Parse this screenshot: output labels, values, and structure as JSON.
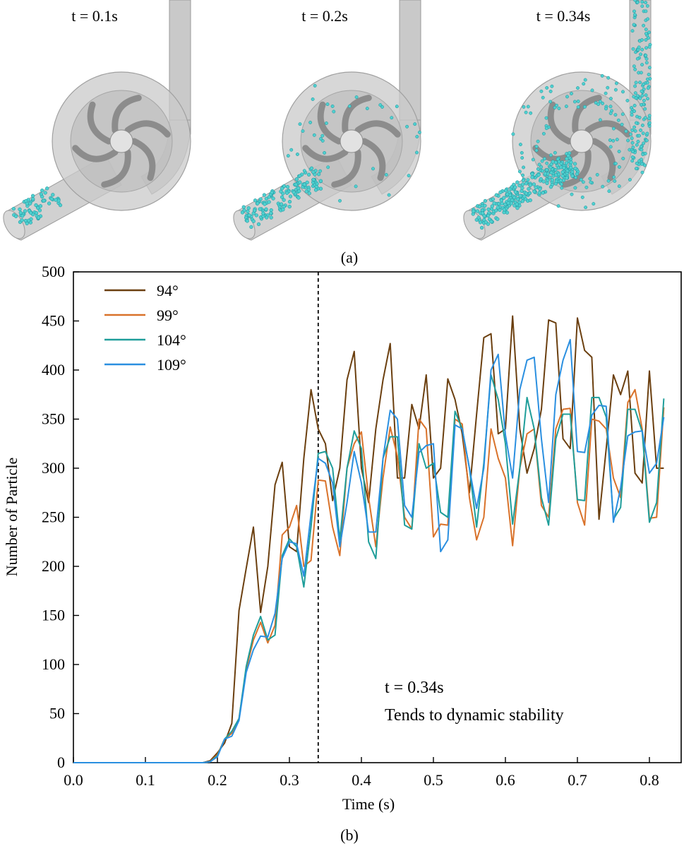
{
  "panel_a": {
    "label": "(a)",
    "snapshots": [
      {
        "time_label": "t = 0.1s",
        "particle_fill": 0.25
      },
      {
        "time_label": "t = 0.2s",
        "particle_fill": 0.55
      },
      {
        "time_label": "t = 0.34s",
        "particle_fill": 1.0
      }
    ],
    "colors": {
      "particle": "#4fd0cf",
      "particle_edge": "#1a8f9a",
      "casing": "#c9c9c9",
      "impeller": "#8c8c8c"
    }
  },
  "panel_b": {
    "label": "(b)"
  },
  "chart_data": {
    "type": "line",
    "xlabel": "Time (s)",
    "ylabel": "Number of Particle",
    "xlim": [
      0.0,
      0.83
    ],
    "ylim": [
      0,
      500
    ],
    "xticks": [
      0.0,
      0.1,
      0.2,
      0.3,
      0.4,
      0.5,
      0.6,
      0.7,
      0.8
    ],
    "xtick_labels": [
      "0.0",
      "0.1",
      "0.2",
      "0.3",
      "0.4",
      "0.5",
      "0.6",
      "0.7",
      "0.8"
    ],
    "yticks": [
      0,
      50,
      100,
      150,
      200,
      250,
      300,
      350,
      400,
      450,
      500
    ],
    "ytick_labels": [
      "0",
      "50",
      "100",
      "150",
      "200",
      "250",
      "300",
      "350",
      "400",
      "450",
      "500"
    ],
    "grid": false,
    "legend_position": "top-left",
    "vline": {
      "x": 0.34,
      "style": "dashed"
    },
    "annotation": [
      "t = 0.34s",
      "Tends to dynamic stability"
    ],
    "x": [
      0.0,
      0.01,
      0.02,
      0.03,
      0.04,
      0.05,
      0.06,
      0.07,
      0.08,
      0.09,
      0.1,
      0.11,
      0.12,
      0.13,
      0.14,
      0.15,
      0.16,
      0.17,
      0.18,
      0.19,
      0.2,
      0.21,
      0.22,
      0.23,
      0.24,
      0.25,
      0.26,
      0.27,
      0.28,
      0.29,
      0.3,
      0.31,
      0.32,
      0.33,
      0.34,
      0.35,
      0.36,
      0.37,
      0.38,
      0.39,
      0.4,
      0.41,
      0.42,
      0.43,
      0.44,
      0.45,
      0.46,
      0.47,
      0.48,
      0.49,
      0.5,
      0.51,
      0.52,
      0.53,
      0.54,
      0.55,
      0.56,
      0.57,
      0.58,
      0.59,
      0.6,
      0.61,
      0.62,
      0.63,
      0.64,
      0.65,
      0.66,
      0.67,
      0.68,
      0.69,
      0.7,
      0.71,
      0.72,
      0.73,
      0.74,
      0.75,
      0.76,
      0.77,
      0.78,
      0.79,
      0.8,
      0.81,
      0.82
    ],
    "series": [
      {
        "name": "94°",
        "color": "#6b3f0f",
        "values": [
          0,
          0,
          0,
          0,
          0,
          0,
          0,
          0,
          0,
          0,
          0,
          0,
          0,
          0,
          0,
          0,
          0,
          0,
          0,
          2,
          10,
          20,
          40,
          155,
          198,
          240,
          153,
          200,
          283,
          306,
          220,
          215,
          310,
          380,
          340,
          325,
          267,
          300,
          390,
          419,
          300,
          265,
          340,
          390,
          427,
          290,
          290,
          365,
          340,
          395,
          290,
          300,
          391,
          370,
          335,
          275,
          355,
          433,
          437,
          335,
          340,
          455,
          340,
          295,
          320,
          360,
          451,
          448,
          330,
          320,
          453,
          420,
          413,
          248,
          320,
          395,
          375,
          399,
          295,
          285,
          399,
          300,
          300
        ]
      },
      {
        "name": "99°",
        "color": "#d9722a",
        "values": [
          0,
          0,
          0,
          0,
          0,
          0,
          0,
          0,
          0,
          0,
          0,
          0,
          0,
          0,
          0,
          0,
          0,
          0,
          0,
          1,
          8,
          24,
          30,
          45,
          95,
          125,
          143,
          122,
          140,
          232,
          240,
          262,
          200,
          206,
          288,
          287,
          240,
          211,
          300,
          325,
          337,
          270,
          220,
          290,
          342,
          312,
          250,
          238,
          350,
          340,
          230,
          243,
          242,
          350,
          345,
          270,
          227,
          250,
          340,
          310,
          290,
          221,
          300,
          335,
          340,
          262,
          250,
          340,
          360,
          361,
          265,
          242,
          350,
          348,
          340,
          290,
          270,
          367,
          380,
          340,
          249,
          250,
          362
        ]
      },
      {
        "name": "104°",
        "color": "#1f9e9a",
        "values": [
          0,
          0,
          0,
          0,
          0,
          0,
          0,
          0,
          0,
          0,
          0,
          0,
          0,
          0,
          0,
          0,
          0,
          0,
          0,
          1,
          7,
          24,
          32,
          45,
          98,
          130,
          149,
          125,
          130,
          211,
          228,
          220,
          179,
          240,
          315,
          317,
          300,
          227,
          300,
          338,
          320,
          225,
          208,
          310,
          332,
          332,
          242,
          238,
          325,
          300,
          305,
          255,
          250,
          358,
          340,
          300,
          240,
          305,
          395,
          370,
          325,
          243,
          300,
          372,
          340,
          270,
          242,
          330,
          355,
          355,
          268,
          267,
          372,
          372,
          352,
          248,
          260,
          360,
          360,
          337,
          245,
          265,
          371
        ]
      },
      {
        "name": "109°",
        "color": "#2a8fe0",
        "values": [
          0,
          0,
          0,
          0,
          0,
          0,
          0,
          0,
          0,
          0,
          0,
          0,
          0,
          0,
          0,
          0,
          0,
          0,
          0,
          1,
          6,
          24,
          27,
          43,
          92,
          115,
          129,
          128,
          152,
          208,
          225,
          223,
          190,
          253,
          310,
          305,
          285,
          220,
          265,
          317,
          285,
          235,
          235,
          310,
          359,
          350,
          262,
          250,
          316,
          323,
          325,
          215,
          227,
          344,
          340,
          300,
          259,
          300,
          400,
          416,
          334,
          290,
          380,
          410,
          413,
          330,
          265,
          375,
          410,
          431,
          317,
          316,
          354,
          364,
          363,
          245,
          280,
          333,
          337,
          338,
          295,
          305,
          352
        ]
      }
    ]
  }
}
